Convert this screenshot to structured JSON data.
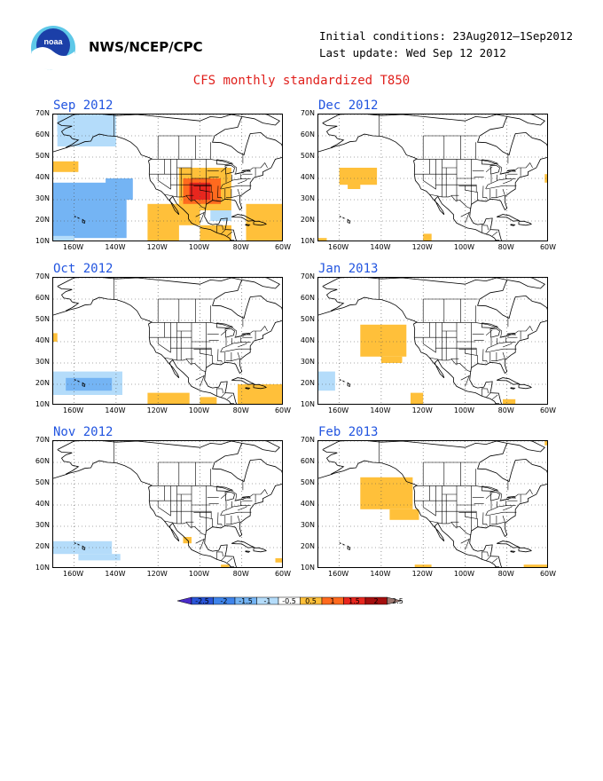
{
  "header": {
    "org": "NWS/NCEP/CPC",
    "initial_conditions": "Initial conditions: 23Aug2012–1Sep2012",
    "last_update": "Last update: Wed Sep 12 2012",
    "logo_icon": "noaa-logo-icon"
  },
  "title": "CFS monthly standardized T850",
  "axes": {
    "lat_labels": [
      "70N",
      "60N",
      "50N",
      "40N",
      "30N",
      "20N",
      "10N"
    ],
    "lat_values": [
      70,
      60,
      50,
      40,
      30,
      20,
      10
    ],
    "lon_labels": [
      "160W",
      "140W",
      "120W",
      "100W",
      "80W",
      "60W"
    ],
    "lon_values": [
      -160,
      -140,
      -120,
      -100,
      -80,
      -60
    ],
    "lon_range": [
      -170,
      -60
    ],
    "lat_range": [
      10,
      70
    ]
  },
  "colorbar": {
    "labels": [
      "-2.5",
      "-2",
      "-1.5",
      "-1",
      "-0.5",
      "0.5",
      "1",
      "1.5",
      "2",
      "2.5"
    ],
    "colors": [
      "#4a2bc9",
      "#2a55d8",
      "#3f84ea",
      "#74b4f4",
      "#b4dcfa",
      "#ffffff",
      "#ffc03a",
      "#ff6a1e",
      "#e8261e",
      "#a40e0e",
      "#9c7770"
    ]
  },
  "panels": [
    {
      "title": "Sep 2012",
      "col": 0,
      "row": 0,
      "anomalies": [
        {
          "level": -2,
          "lon": [
            -170,
            -145
          ],
          "lat": [
            15,
            32
          ]
        },
        {
          "level": -2,
          "lon": [
            -155,
            -140
          ],
          "lat": [
            28,
            35
          ]
        },
        {
          "level": -1,
          "lon": [
            -170,
            -135
          ],
          "lat": [
            12,
            38
          ]
        },
        {
          "level": -1,
          "lon": [
            -145,
            -132
          ],
          "lat": [
            30,
            40
          ]
        },
        {
          "level": -1,
          "lon": [
            -168,
            -150
          ],
          "lat": [
            62,
            68
          ]
        },
        {
          "level": -0.5,
          "lon": [
            -168,
            -140
          ],
          "lat": [
            55,
            70
          ]
        },
        {
          "level": -0.5,
          "lon": [
            -95,
            -85
          ],
          "lat": [
            20,
            28
          ]
        },
        {
          "level": -0.5,
          "lon": [
            -170,
            -160
          ],
          "lat": [
            10,
            13
          ]
        },
        {
          "level": 0.5,
          "lon": [
            -170,
            -158
          ],
          "lat": [
            43,
            48
          ]
        },
        {
          "level": 0.5,
          "lon": [
            -125,
            -110
          ],
          "lat": [
            10,
            28
          ]
        },
        {
          "level": 0.5,
          "lon": [
            -110,
            -100
          ],
          "lat": [
            18,
            25
          ]
        },
        {
          "level": 0.5,
          "lon": [
            -100,
            -85
          ],
          "lat": [
            10,
            18
          ]
        },
        {
          "level": 0.5,
          "lon": [
            -78,
            -60
          ],
          "lat": [
            10,
            28
          ]
        },
        {
          "level": 0.5,
          "lon": [
            -110,
            -85
          ],
          "lat": [
            25,
            45
          ]
        },
        {
          "level": 1,
          "lon": [
            -108,
            -90
          ],
          "lat": [
            28,
            40
          ]
        },
        {
          "level": 1.5,
          "lon": [
            -105,
            -95
          ],
          "lat": [
            30,
            38
          ]
        }
      ]
    },
    {
      "title": "Dec 2012",
      "col": 1,
      "row": 0,
      "anomalies": [
        {
          "level": 0.5,
          "lon": [
            -160,
            -142
          ],
          "lat": [
            37,
            45
          ]
        },
        {
          "level": 0.5,
          "lon": [
            -156,
            -150
          ],
          "lat": [
            35,
            38
          ]
        },
        {
          "level": 0.5,
          "lon": [
            -120,
            -116
          ],
          "lat": [
            10,
            14
          ]
        },
        {
          "level": 0.5,
          "lon": [
            -62,
            -60
          ],
          "lat": [
            38,
            42
          ]
        },
        {
          "level": 0.5,
          "lon": [
            -170,
            -166
          ],
          "lat": [
            10,
            12
          ]
        }
      ]
    },
    {
      "title": "Oct 2012",
      "col": 0,
      "row": 1,
      "anomalies": [
        {
          "level": -0.5,
          "lon": [
            -170,
            -137
          ],
          "lat": [
            15,
            26
          ]
        },
        {
          "level": -1,
          "lon": [
            -164,
            -142
          ],
          "lat": [
            17,
            23
          ]
        },
        {
          "level": 0.5,
          "lon": [
            -125,
            -105
          ],
          "lat": [
            10,
            16
          ]
        },
        {
          "level": 0.5,
          "lon": [
            -100,
            -92
          ],
          "lat": [
            10,
            14
          ]
        },
        {
          "level": 0.5,
          "lon": [
            -82,
            -60
          ],
          "lat": [
            10,
            20
          ]
        },
        {
          "level": 0.5,
          "lon": [
            -170,
            -168
          ],
          "lat": [
            40,
            44
          ]
        }
      ]
    },
    {
      "title": "Jan 2013",
      "col": 1,
      "row": 1,
      "anomalies": [
        {
          "level": 0.5,
          "lon": [
            -150,
            -128
          ],
          "lat": [
            33,
            48
          ]
        },
        {
          "level": 0.5,
          "lon": [
            -140,
            -130
          ],
          "lat": [
            30,
            33
          ]
        },
        {
          "level": 0.5,
          "lon": [
            -126,
            -120
          ],
          "lat": [
            10,
            16
          ]
        },
        {
          "level": 0.5,
          "lon": [
            -82,
            -76
          ],
          "lat": [
            10,
            13
          ]
        },
        {
          "level": -0.5,
          "lon": [
            -170,
            -162
          ],
          "lat": [
            17,
            26
          ]
        }
      ]
    },
    {
      "title": "Nov 2012",
      "col": 0,
      "row": 2,
      "anomalies": [
        {
          "level": -0.5,
          "lon": [
            -170,
            -142
          ],
          "lat": [
            17,
            23
          ]
        },
        {
          "level": -0.5,
          "lon": [
            -158,
            -138
          ],
          "lat": [
            14,
            17
          ]
        },
        {
          "level": 0.5,
          "lon": [
            -108,
            -104
          ],
          "lat": [
            22,
            25
          ]
        },
        {
          "level": 0.5,
          "lon": [
            -90,
            -86
          ],
          "lat": [
            10,
            12
          ]
        },
        {
          "level": 0.5,
          "lon": [
            -64,
            -60
          ],
          "lat": [
            13,
            15
          ]
        }
      ]
    },
    {
      "title": "Feb 2013",
      "col": 1,
      "row": 2,
      "anomalies": [
        {
          "level": 0.5,
          "lon": [
            -150,
            -125
          ],
          "lat": [
            38,
            53
          ]
        },
        {
          "level": 0.5,
          "lon": [
            -136,
            -122
          ],
          "lat": [
            33,
            38
          ]
        },
        {
          "level": 0.5,
          "lon": [
            -124,
            -116
          ],
          "lat": [
            10,
            12
          ]
        },
        {
          "level": 0.5,
          "lon": [
            -72,
            -60
          ],
          "lat": [
            10,
            12
          ]
        },
        {
          "level": 0.5,
          "lon": [
            -62,
            -60
          ],
          "lat": [
            68,
            70
          ]
        }
      ]
    }
  ]
}
